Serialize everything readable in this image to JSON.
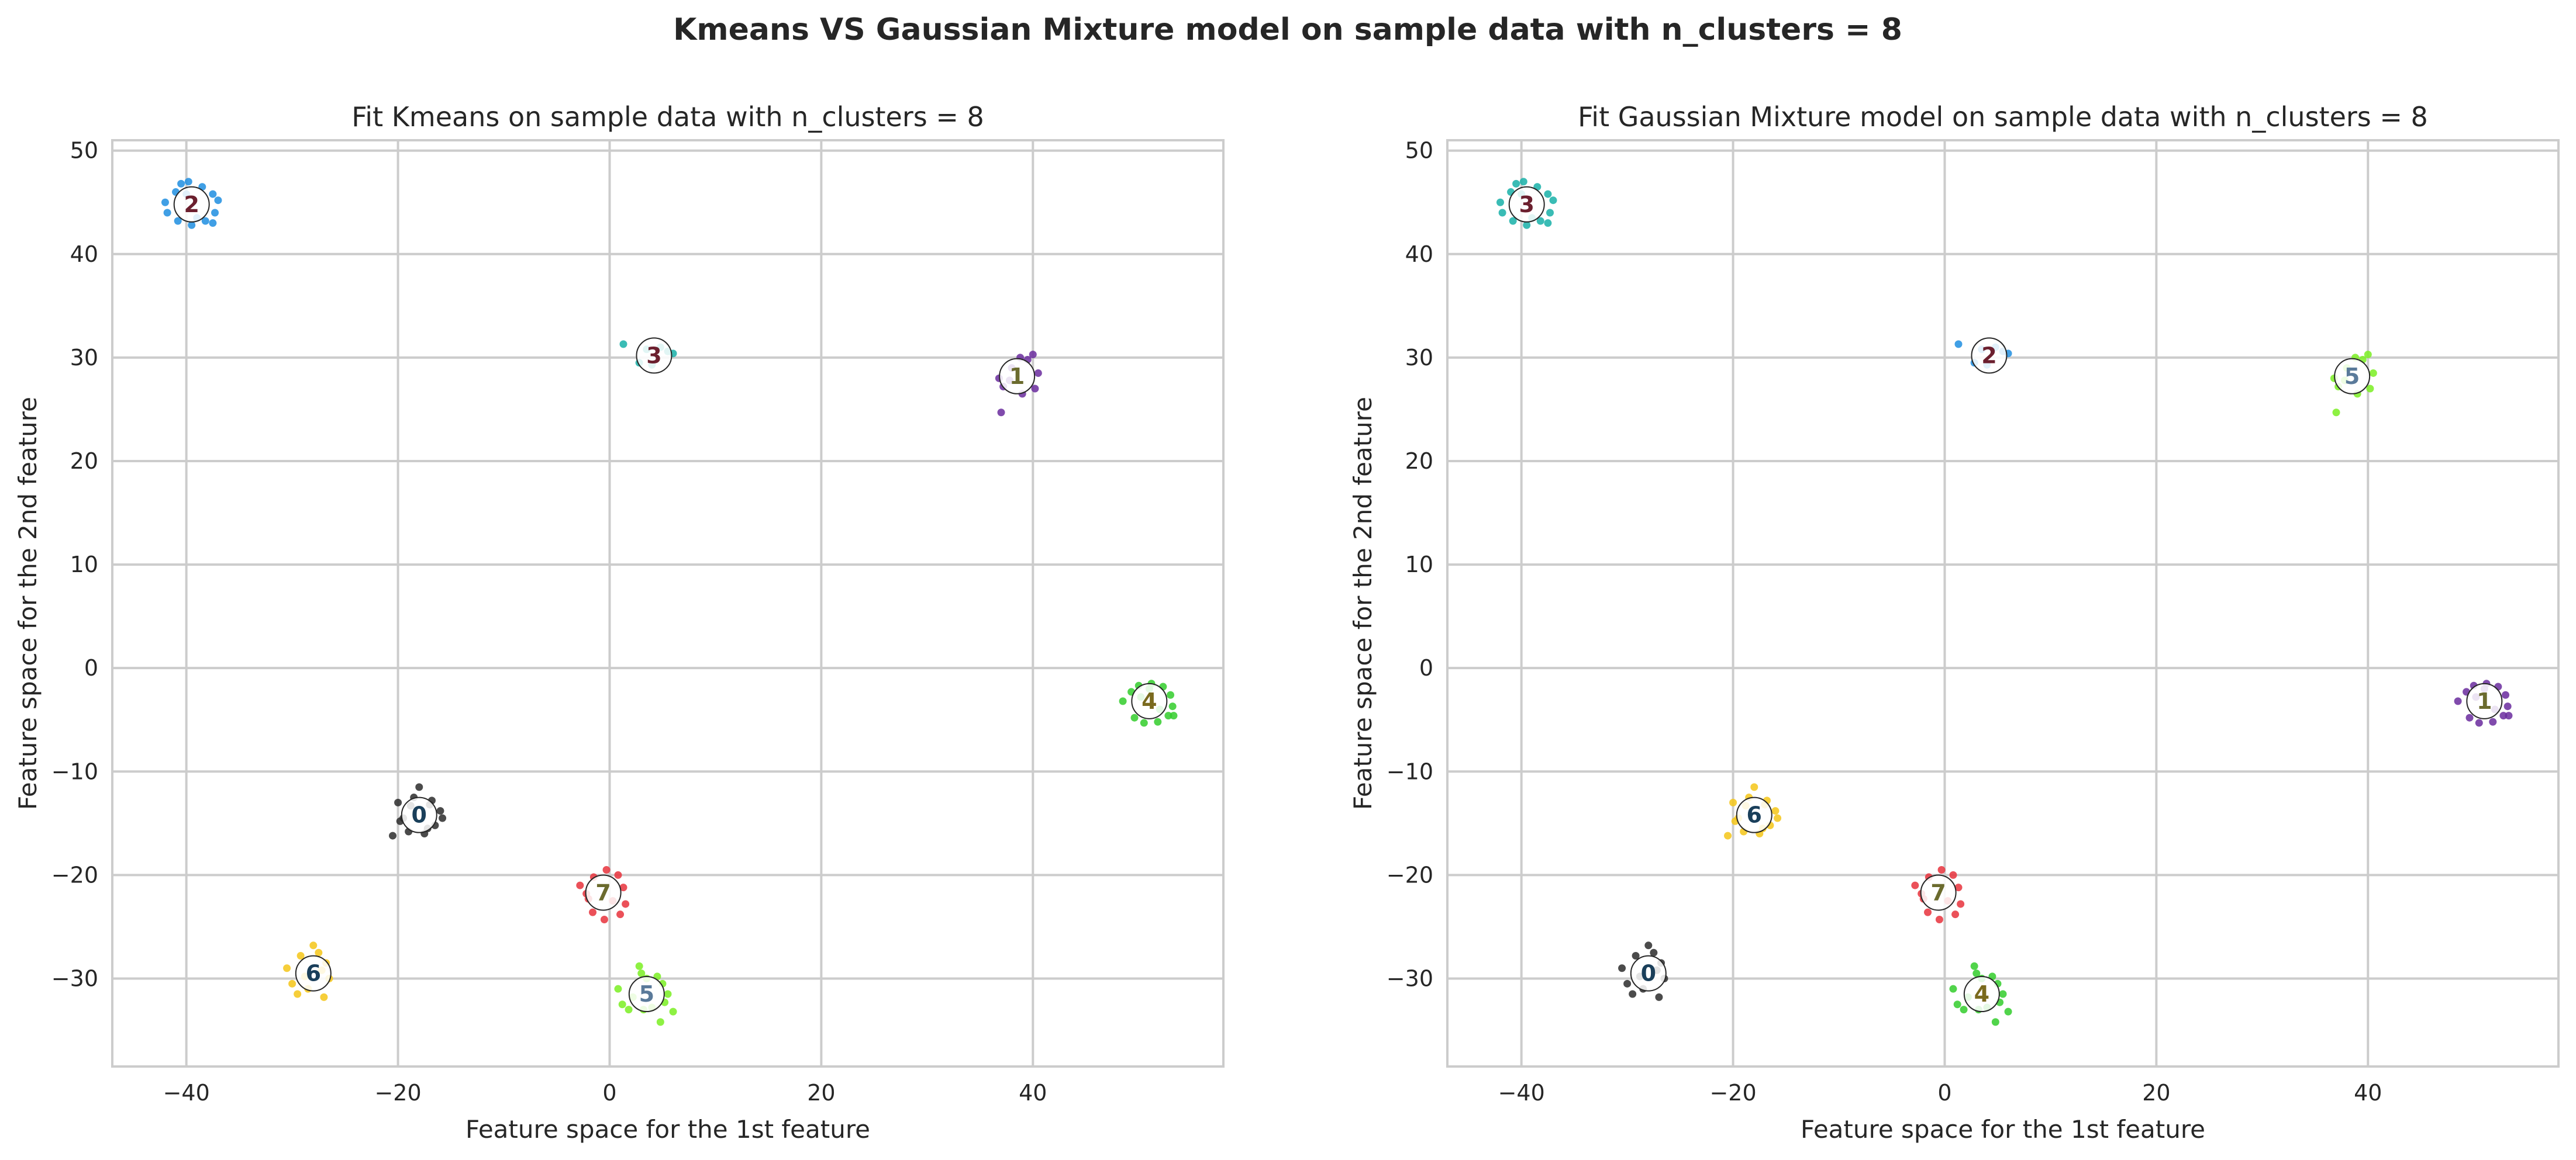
{
  "figure": {
    "suptitle": "Kmeans VS Gaussian Mixture model on sample data with n_clusters = 8"
  },
  "chart_data": [
    {
      "type": "scatter",
      "title": "Fit Kmeans on sample data with n_clusters = 8",
      "xlabel": "Feature space for the 1st feature",
      "ylabel": "Feature space for the 2nd feature",
      "xlim": [
        -47,
        58
      ],
      "ylim": [
        -38.5,
        51
      ],
      "xticks": [
        -40,
        -20,
        0,
        20,
        40
      ],
      "xtick_labels": [
        "−40",
        "−20",
        "0",
        "20",
        "40"
      ],
      "yticks": [
        -30,
        -20,
        -10,
        0,
        10,
        20,
        30,
        40,
        50
      ],
      "ytick_labels": [
        "−30",
        "−20",
        "−10",
        "0",
        "10",
        "20",
        "30",
        "40",
        "50"
      ],
      "grid": true,
      "clusters": [
        {
          "label": "0",
          "center": [
            -18,
            -14.2
          ],
          "color": "#2b2b2b",
          "text_color": "#1a3f5a",
          "points": [
            [
              -20,
              -13
            ],
            [
              -19.5,
              -14.5
            ],
            [
              -18.5,
              -12.5
            ],
            [
              -17,
              -13.2
            ],
            [
              -16,
              -13.8
            ],
            [
              -16.5,
              -15.2
            ],
            [
              -17.5,
              -16
            ],
            [
              -19,
              -15.8
            ],
            [
              -20.5,
              -16.2
            ],
            [
              -18,
              -11.5
            ],
            [
              -15.8,
              -14.5
            ],
            [
              -19.8,
              -14.8
            ],
            [
              -17.2,
              -15.5
            ],
            [
              -18.8,
              -13.3
            ],
            [
              -16.8,
              -12.8
            ]
          ]
        },
        {
          "label": "1",
          "center": [
            38.5,
            28.2
          ],
          "color": "#6a2c9e",
          "text_color": "#6b6b2e",
          "points": [
            [
              37,
              24.7
            ],
            [
              37.2,
              27.2
            ],
            [
              38,
              29
            ],
            [
              39.5,
              29.8
            ],
            [
              40,
              30.3
            ],
            [
              40.5,
              28.5
            ],
            [
              40.2,
              27
            ],
            [
              39,
              26.5
            ],
            [
              37.8,
              27.8
            ],
            [
              38.8,
              30
            ],
            [
              36.8,
              28
            ]
          ]
        },
        {
          "label": "2",
          "center": [
            -39.5,
            44.8
          ],
          "color": "#1f8ee0",
          "text_color": "#6b1f2e",
          "points": [
            [
              -41,
              46
            ],
            [
              -40.5,
              46.8
            ],
            [
              -39.8,
              47
            ],
            [
              -38.5,
              46.5
            ],
            [
              -37.5,
              45.8
            ],
            [
              -37,
              45.2
            ],
            [
              -37.3,
              44
            ],
            [
              -38.2,
              43.2
            ],
            [
              -39.5,
              42.8
            ],
            [
              -40.8,
              43.2
            ],
            [
              -41.8,
              44
            ],
            [
              -42,
              45
            ],
            [
              -37.5,
              43
            ],
            [
              -39,
              43.5
            ],
            [
              -40,
              45.8
            ]
          ]
        },
        {
          "label": "3",
          "center": [
            4.2,
            30.2
          ],
          "color": "#18b0a8",
          "text_color": "#6b1f2e",
          "points": [
            [
              1.3,
              31.3
            ],
            [
              2.8,
              29.5
            ],
            [
              4,
              29.3
            ],
            [
              5.5,
              30.6
            ],
            [
              6,
              30.4
            ],
            [
              4.8,
              31
            ],
            [
              3.5,
              30.8
            ]
          ]
        },
        {
          "label": "4",
          "center": [
            51,
            -3.2
          ],
          "color": "#33cc2b",
          "text_color": "#7a6a1e",
          "points": [
            [
              48.5,
              -3.2
            ],
            [
              49.3,
              -2.3
            ],
            [
              50,
              -1.7
            ],
            [
              51.2,
              -1.5
            ],
            [
              52.3,
              -1.8
            ],
            [
              53,
              -2.6
            ],
            [
              53.2,
              -3.7
            ],
            [
              52.8,
              -4.6
            ],
            [
              51.8,
              -5.2
            ],
            [
              50.5,
              -5.3
            ],
            [
              49.6,
              -4.8
            ],
            [
              50.2,
              -2.8
            ],
            [
              52,
              -4
            ],
            [
              51,
              -2
            ],
            [
              53.3,
              -4.6
            ]
          ]
        },
        {
          "label": "5",
          "center": [
            3.5,
            -31.5
          ],
          "color": "#7aee22",
          "text_color": "#5a7a9a",
          "points": [
            [
              0.8,
              -31
            ],
            [
              1.2,
              -32.5
            ],
            [
              1.8,
              -33
            ],
            [
              2.8,
              -28.8
            ],
            [
              3.5,
              -30
            ],
            [
              4.5,
              -29.8
            ],
            [
              5,
              -30.5
            ],
            [
              5.5,
              -31.5
            ],
            [
              6,
              -33.2
            ],
            [
              4.8,
              -34.2
            ],
            [
              3.2,
              -33
            ],
            [
              2.2,
              -31.8
            ],
            [
              4,
              -32.8
            ],
            [
              5.2,
              -32.3
            ],
            [
              3,
              -29.5
            ]
          ]
        },
        {
          "label": "6",
          "center": [
            -28,
            -29.5
          ],
          "color": "#f5c518",
          "text_color": "#1a3f5a",
          "points": [
            [
              -30.5,
              -29
            ],
            [
              -30,
              -30.5
            ],
            [
              -29.5,
              -31.5
            ],
            [
              -28,
              -26.8
            ],
            [
              -27.5,
              -27.5
            ],
            [
              -26.8,
              -28.5
            ],
            [
              -26.5,
              -30
            ],
            [
              -27,
              -31.8
            ],
            [
              -28.5,
              -31
            ],
            [
              -29.2,
              -27.8
            ],
            [
              -27.2,
              -29.2
            ],
            [
              -28.8,
              -29.8
            ]
          ]
        },
        {
          "label": "7",
          "center": [
            -0.6,
            -21.7
          ],
          "color": "#e8323c",
          "text_color": "#6b6b2e",
          "points": [
            [
              -2.8,
              -21
            ],
            [
              -2,
              -22.3
            ],
            [
              -1.5,
              -20.2
            ],
            [
              -0.3,
              -19.5
            ],
            [
              0.8,
              -20
            ],
            [
              1.3,
              -21.2
            ],
            [
              1.5,
              -22.8
            ],
            [
              1,
              -23.8
            ],
            [
              -0.5,
              -24.3
            ],
            [
              -1.6,
              -23.6
            ],
            [
              -2.2,
              -21.8
            ],
            [
              0.3,
              -22.5
            ]
          ]
        }
      ]
    },
    {
      "type": "scatter",
      "title": "Fit Gaussian Mixture model on sample data with n_clusters = 8",
      "xlabel": "Feature space for the 1st feature",
      "ylabel": "Feature space for the 2nd feature",
      "xlim": [
        -47,
        58
      ],
      "ylim": [
        -38.5,
        51
      ],
      "xticks": [
        -40,
        -20,
        0,
        20,
        40
      ],
      "xtick_labels": [
        "−40",
        "−20",
        "0",
        "20",
        "40"
      ],
      "yticks": [
        -30,
        -20,
        -10,
        0,
        10,
        20,
        30,
        40,
        50
      ],
      "ytick_labels": [
        "−30",
        "−20",
        "−10",
        "0",
        "10",
        "20",
        "30",
        "40",
        "50"
      ],
      "grid": true,
      "clusters": [
        {
          "label": "0",
          "center": [
            -28,
            -29.5
          ],
          "color": "#2b2b2b",
          "text_color": "#1a3f5a",
          "points": [
            [
              -30.5,
              -29
            ],
            [
              -30,
              -30.5
            ],
            [
              -29.5,
              -31.5
            ],
            [
              -28,
              -26.8
            ],
            [
              -27.5,
              -27.5
            ],
            [
              -26.8,
              -28.5
            ],
            [
              -26.5,
              -30
            ],
            [
              -27,
              -31.8
            ],
            [
              -28.5,
              -31
            ],
            [
              -29.2,
              -27.8
            ],
            [
              -27.2,
              -29.2
            ],
            [
              -28.8,
              -29.8
            ]
          ]
        },
        {
          "label": "1",
          "center": [
            51,
            -3.2
          ],
          "color": "#6a2c9e",
          "text_color": "#6b6b2e",
          "points": [
            [
              48.5,
              -3.2
            ],
            [
              49.3,
              -2.3
            ],
            [
              50,
              -1.7
            ],
            [
              51.2,
              -1.5
            ],
            [
              52.3,
              -1.8
            ],
            [
              53,
              -2.6
            ],
            [
              53.2,
              -3.7
            ],
            [
              52.8,
              -4.6
            ],
            [
              51.8,
              -5.2
            ],
            [
              50.5,
              -5.3
            ],
            [
              49.6,
              -4.8
            ],
            [
              50.2,
              -2.8
            ],
            [
              52,
              -4
            ],
            [
              51,
              -2
            ],
            [
              53.3,
              -4.6
            ]
          ]
        },
        {
          "label": "2",
          "center": [
            4.2,
            30.2
          ],
          "color": "#1f8ee0",
          "text_color": "#6b1f2e",
          "points": [
            [
              1.3,
              31.3
            ],
            [
              2.8,
              29.5
            ],
            [
              4,
              29.3
            ],
            [
              5.5,
              30.6
            ],
            [
              6,
              30.4
            ],
            [
              4.8,
              31
            ],
            [
              3.5,
              30.8
            ]
          ]
        },
        {
          "label": "3",
          "center": [
            -39.5,
            44.8
          ],
          "color": "#18b0a8",
          "text_color": "#6b1f2e",
          "points": [
            [
              -41,
              46
            ],
            [
              -40.5,
              46.8
            ],
            [
              -39.8,
              47
            ],
            [
              -38.5,
              46.5
            ],
            [
              -37.5,
              45.8
            ],
            [
              -37,
              45.2
            ],
            [
              -37.3,
              44
            ],
            [
              -38.2,
              43.2
            ],
            [
              -39.5,
              42.8
            ],
            [
              -40.8,
              43.2
            ],
            [
              -41.8,
              44
            ],
            [
              -42,
              45
            ],
            [
              -37.5,
              43
            ],
            [
              -39,
              43.5
            ],
            [
              -40,
              45.8
            ]
          ]
        },
        {
          "label": "4",
          "center": [
            3.5,
            -31.5
          ],
          "color": "#33cc2b",
          "text_color": "#7a6a1e",
          "points": [
            [
              0.8,
              -31
            ],
            [
              1.2,
              -32.5
            ],
            [
              1.8,
              -33
            ],
            [
              2.8,
              -28.8
            ],
            [
              3.5,
              -30
            ],
            [
              4.5,
              -29.8
            ],
            [
              5,
              -30.5
            ],
            [
              5.5,
              -31.5
            ],
            [
              6,
              -33.2
            ],
            [
              4.8,
              -34.2
            ],
            [
              3.2,
              -33
            ],
            [
              2.2,
              -31.8
            ],
            [
              4,
              -32.8
            ],
            [
              5.2,
              -32.3
            ],
            [
              3,
              -29.5
            ]
          ]
        },
        {
          "label": "5",
          "center": [
            38.5,
            28.2
          ],
          "color": "#7aee22",
          "text_color": "#5a7a9a",
          "points": [
            [
              37,
              24.7
            ],
            [
              37.2,
              27.2
            ],
            [
              38,
              29
            ],
            [
              39.5,
              29.8
            ],
            [
              40,
              30.3
            ],
            [
              40.5,
              28.5
            ],
            [
              40.2,
              27
            ],
            [
              39,
              26.5
            ],
            [
              37.8,
              27.8
            ],
            [
              38.8,
              30
            ],
            [
              36.8,
              28
            ]
          ]
        },
        {
          "label": "6",
          "center": [
            -18,
            -14.2
          ],
          "color": "#f5c518",
          "text_color": "#1a3f5a",
          "points": [
            [
              -20,
              -13
            ],
            [
              -19.5,
              -14.5
            ],
            [
              -18.5,
              -12.5
            ],
            [
              -17,
              -13.2
            ],
            [
              -16,
              -13.8
            ],
            [
              -16.5,
              -15.2
            ],
            [
              -17.5,
              -16
            ],
            [
              -19,
              -15.8
            ],
            [
              -20.5,
              -16.2
            ],
            [
              -18,
              -11.5
            ],
            [
              -15.8,
              -14.5
            ],
            [
              -19.8,
              -14.8
            ],
            [
              -17.2,
              -15.5
            ],
            [
              -18.8,
              -13.3
            ],
            [
              -16.8,
              -12.8
            ]
          ]
        },
        {
          "label": "7",
          "center": [
            -0.6,
            -21.7
          ],
          "color": "#e8323c",
          "text_color": "#6b6b2e",
          "points": [
            [
              -2.8,
              -21
            ],
            [
              -2,
              -22.3
            ],
            [
              -1.5,
              -20.2
            ],
            [
              -0.3,
              -19.5
            ],
            [
              0.8,
              -20
            ],
            [
              1.3,
              -21.2
            ],
            [
              1.5,
              -22.8
            ],
            [
              1,
              -23.8
            ],
            [
              -0.5,
              -24.3
            ],
            [
              -1.6,
              -23.6
            ],
            [
              -2.2,
              -21.8
            ],
            [
              0.3,
              -22.5
            ]
          ]
        }
      ]
    }
  ]
}
